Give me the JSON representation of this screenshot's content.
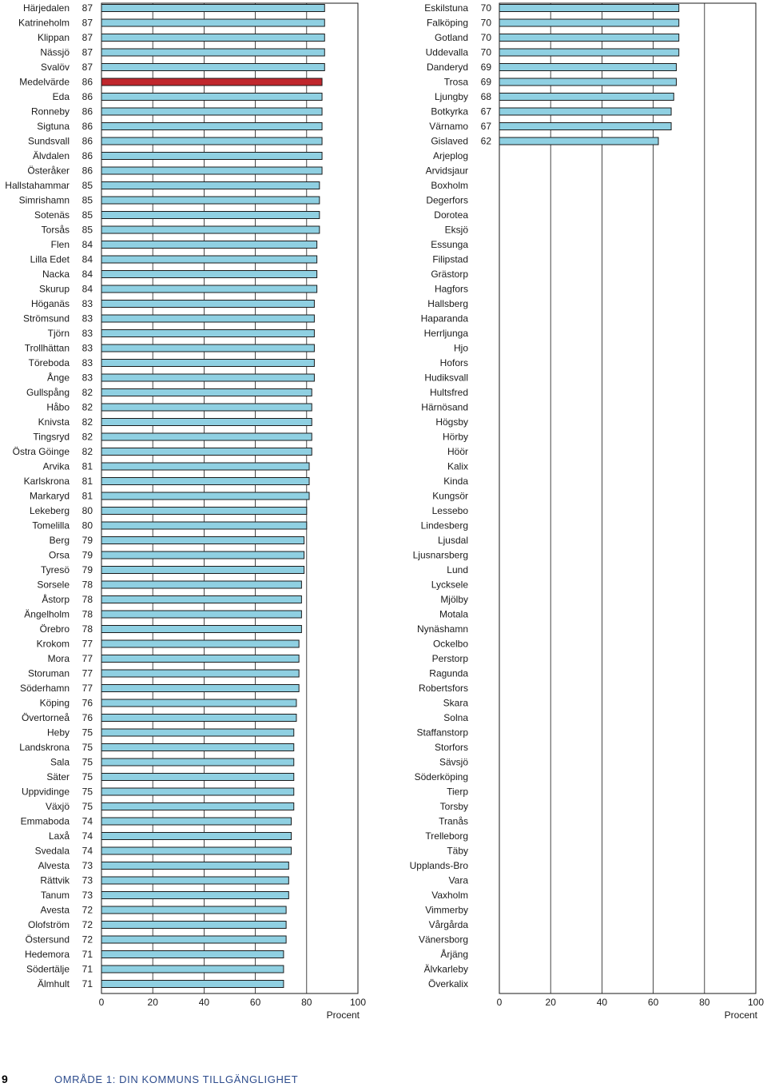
{
  "chart_data": [
    {
      "type": "bar",
      "orientation": "horizontal",
      "title": "",
      "xlabel": "Procent",
      "ylabel": "",
      "xlim": [
        0,
        100
      ],
      "xticks": [
        "0",
        "20",
        "40",
        "60",
        "80",
        "100"
      ],
      "grid": true,
      "bar_color": "#8fd0e2",
      "highlight_color": "#c0272d",
      "highlight_category": "Medelvärde",
      "categories": [
        "Härjedalen",
        "Katrineholm",
        "Klippan",
        "Nässjö",
        "Svalöv",
        "Medelvärde",
        "Eda",
        "Ronneby",
        "Sigtuna",
        "Sundsvall",
        "Älvdalen",
        "Österåker",
        "Hallstahammar",
        "Simrishamn",
        "Sotenäs",
        "Torsås",
        "Flen",
        "Lilla Edet",
        "Nacka",
        "Skurup",
        "Höganäs",
        "Strömsund",
        "Tjörn",
        "Trollhättan",
        "Töreboda",
        "Ånge",
        "Gullspång",
        "Håbo",
        "Knivsta",
        "Tingsryd",
        "Östra Göinge",
        "Arvika",
        "Karlskrona",
        "Markaryd",
        "Lekeberg",
        "Tomelilla",
        "Berg",
        "Orsa",
        "Tyresö",
        "Sorsele",
        "Åstorp",
        "Ängelholm",
        "Örebro",
        "Krokom",
        "Mora",
        "Storuman",
        "Söderhamn",
        "Köping",
        "Övertorneå",
        "Heby",
        "Landskrona",
        "Sala",
        "Säter",
        "Uppvidinge",
        "Växjö",
        "Emmaboda",
        "Laxå",
        "Svedala",
        "Alvesta",
        "Rättvik",
        "Tanum",
        "Avesta",
        "Olofström",
        "Östersund",
        "Hedemora",
        "Södertälje",
        "Älmhult"
      ],
      "values": [
        87,
        87,
        87,
        87,
        87,
        86,
        86,
        86,
        86,
        86,
        86,
        86,
        85,
        85,
        85,
        85,
        84,
        84,
        84,
        84,
        83,
        83,
        83,
        83,
        83,
        83,
        82,
        82,
        82,
        82,
        82,
        81,
        81,
        81,
        80,
        80,
        79,
        79,
        79,
        78,
        78,
        78,
        78,
        77,
        77,
        77,
        77,
        76,
        76,
        75,
        75,
        75,
        75,
        75,
        75,
        74,
        74,
        74,
        73,
        73,
        73,
        72,
        72,
        72,
        71,
        71,
        71
      ]
    },
    {
      "type": "bar",
      "orientation": "horizontal",
      "title": "",
      "xlabel": "Procent",
      "ylabel": "",
      "xlim": [
        0,
        100
      ],
      "xticks": [
        "0",
        "20",
        "40",
        "60",
        "80",
        "100"
      ],
      "grid": true,
      "bar_color": "#8fd0e2",
      "categories": [
        "Eskilstuna",
        "Falköping",
        "Gotland",
        "Uddevalla",
        "Danderyd",
        "Trosa",
        "Ljungby",
        "Botkyrka",
        "Värnamo",
        "Gislaved",
        "Arjeplog",
        "Arvidsjaur",
        "Boxholm",
        "Degerfors",
        "Dorotea",
        "Eksjö",
        "Essunga",
        "Filipstad",
        "Grästorp",
        "Hagfors",
        "Hallsberg",
        "Haparanda",
        "Herrljunga",
        "Hjo",
        "Hofors",
        "Hudiksvall",
        "Hultsfred",
        "Härnösand",
        "Högsby",
        "Hörby",
        "Höör",
        "Kalix",
        "Kinda",
        "Kungsör",
        "Lessebo",
        "Lindesberg",
        "Ljusdal",
        "Ljusnarsberg",
        "Lund",
        "Lycksele",
        "Mjölby",
        "Motala",
        "Nynäshamn",
        "Ockelbo",
        "Perstorp",
        "Ragunda",
        "Robertsfors",
        "Skara",
        "Solna",
        "Staffanstorp",
        "Storfors",
        "Sävsjö",
        "Söderköping",
        "Tierp",
        "Torsby",
        "Tranås",
        "Trelleborg",
        "Täby",
        "Upplands-Bro",
        "Vara",
        "Vaxholm",
        "Vimmerby",
        "Vårgårda",
        "Vänersborg",
        "Årjäng",
        "Älvkarleby",
        "Överkalix"
      ],
      "values": [
        70,
        70,
        70,
        70,
        69,
        69,
        68,
        67,
        67,
        62,
        null,
        null,
        null,
        null,
        null,
        null,
        null,
        null,
        null,
        null,
        null,
        null,
        null,
        null,
        null,
        null,
        null,
        null,
        null,
        null,
        null,
        null,
        null,
        null,
        null,
        null,
        null,
        null,
        null,
        null,
        null,
        null,
        null,
        null,
        null,
        null,
        null,
        null,
        null,
        null,
        null,
        null,
        null,
        null,
        null,
        null,
        null,
        null,
        null,
        null,
        null,
        null,
        null,
        null,
        null,
        null,
        null
      ]
    }
  ],
  "footer": {
    "page_number": "9",
    "section": "OMRÅDE 1: DIN KOMMUNS TILLGÄNGLIGHET"
  }
}
